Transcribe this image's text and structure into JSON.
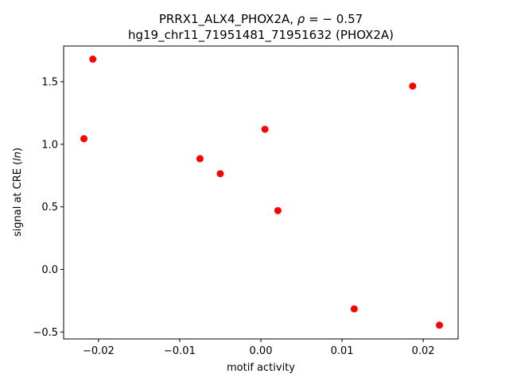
{
  "chart_data": {
    "type": "scatter",
    "title_line1": "PRRX1_ALX4_PHOX2A, ρ = − 0.57",
    "title_line2": "hg19_chr11_71951481_71951632 (PHOX2A)",
    "xlabel": "motif activity",
    "ylabel": "signal at CRE (ln)",
    "xlim": [
      -0.0243,
      0.0243
    ],
    "ylim": [
      -0.555,
      1.785
    ],
    "xticks": [
      -0.02,
      -0.01,
      0.0,
      0.01,
      0.02
    ],
    "xtick_labels": [
      "−0.02",
      "−0.01",
      "0.00",
      "0.01",
      "0.02"
    ],
    "yticks": [
      -0.5,
      0.0,
      0.5,
      1.0,
      1.5
    ],
    "ytick_labels": [
      "−0.5",
      "0.0",
      "0.5",
      "1.0",
      "1.5"
    ],
    "grid": false,
    "point_color": "#ff0000",
    "x": [
      -0.0207,
      -0.0218,
      -0.0075,
      -0.005,
      0.0005,
      0.0021,
      0.0115,
      0.0187,
      0.022
    ],
    "y": [
      1.68,
      1.045,
      0.885,
      0.765,
      1.12,
      0.47,
      -0.315,
      1.465,
      -0.445
    ]
  }
}
